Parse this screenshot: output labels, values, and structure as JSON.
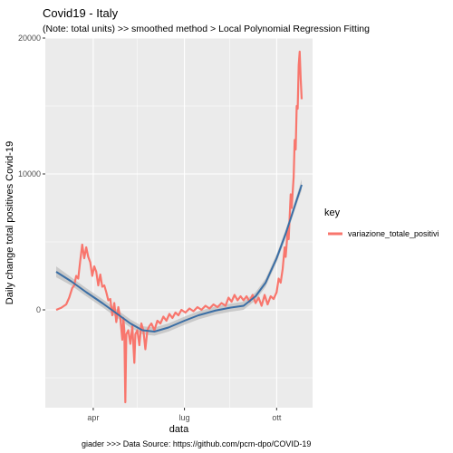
{
  "chart_data": {
    "type": "line",
    "title": "Covid19 - Italy",
    "subtitle": "(Note: total units) >> smoothed method > Local Polynomial Regression Fitting",
    "xlabel": "data",
    "ylabel": "Daily change total positives Covid-19",
    "caption": "giader >>> Data Source: https://github.com/pcm-dpo/COVID-19",
    "xlim": [
      "2020-02-24",
      "2020-10-26"
    ],
    "ylim": [
      -7200,
      20000
    ],
    "grid": true,
    "x_ticks": [
      {
        "date": "2020-04-01",
        "label": "apr"
      },
      {
        "date": "2020-07-01",
        "label": "lug"
      },
      {
        "date": "2020-10-01",
        "label": "ott"
      }
    ],
    "y_ticks": [
      0,
      10000,
      20000
    ],
    "legend": {
      "title": "key",
      "position": "right",
      "entries": [
        "variazione_totale_positivi"
      ]
    },
    "colors": {
      "series": "#f8766d",
      "smooth": "#3a6ea5",
      "band": "#bdbdbd",
      "panel": "#ebebeb",
      "grid": "#ffffff"
    },
    "series": [
      {
        "name": "variazione_totale_positivi",
        "points": [
          [
            "2020-02-24",
            0
          ],
          [
            "2020-02-29",
            150
          ],
          [
            "2020-03-05",
            400
          ],
          [
            "2020-03-08",
            900
          ],
          [
            "2020-03-11",
            1600
          ],
          [
            "2020-03-13",
            1800
          ],
          [
            "2020-03-15",
            2500
          ],
          [
            "2020-03-17",
            2300
          ],
          [
            "2020-03-19",
            3600
          ],
          [
            "2020-03-21",
            4800
          ],
          [
            "2020-03-23",
            3800
          ],
          [
            "2020-03-25",
            4600
          ],
          [
            "2020-03-27",
            3900
          ],
          [
            "2020-03-29",
            3500
          ],
          [
            "2020-03-31",
            2500
          ],
          [
            "2020-04-02",
            3200
          ],
          [
            "2020-04-04",
            2800
          ],
          [
            "2020-04-06",
            1800
          ],
          [
            "2020-04-08",
            2600
          ],
          [
            "2020-04-10",
            1700
          ],
          [
            "2020-04-12",
            1800
          ],
          [
            "2020-04-14",
            1300
          ],
          [
            "2020-04-16",
            700
          ],
          [
            "2020-04-18",
            800
          ],
          [
            "2020-04-20",
            -400
          ],
          [
            "2020-04-22",
            500
          ],
          [
            "2020-04-24",
            -900
          ],
          [
            "2020-04-26",
            200
          ],
          [
            "2020-04-28",
            -600
          ],
          [
            "2020-04-30",
            -2200
          ],
          [
            "2020-05-01",
            -600
          ],
          [
            "2020-05-02",
            -1500
          ],
          [
            "2020-05-03",
            -6800
          ],
          [
            "2020-05-04",
            -1800
          ],
          [
            "2020-05-06",
            -1500
          ],
          [
            "2020-05-08",
            -2500
          ],
          [
            "2020-05-10",
            -1200
          ],
          [
            "2020-05-12",
            -3900
          ],
          [
            "2020-05-13",
            -1800
          ],
          [
            "2020-05-15",
            -1500
          ],
          [
            "2020-05-17",
            -2600
          ],
          [
            "2020-05-19",
            -1000
          ],
          [
            "2020-05-21",
            -1500
          ],
          [
            "2020-05-23",
            -2900
          ],
          [
            "2020-05-25",
            -1500
          ],
          [
            "2020-05-27",
            -1200
          ],
          [
            "2020-05-29",
            -1000
          ],
          [
            "2020-06-01",
            -1500
          ],
          [
            "2020-06-04",
            -800
          ],
          [
            "2020-06-07",
            -1000
          ],
          [
            "2020-06-10",
            -500
          ],
          [
            "2020-06-13",
            -800
          ],
          [
            "2020-06-16",
            -300
          ],
          [
            "2020-06-19",
            -600
          ],
          [
            "2020-06-22",
            -200
          ],
          [
            "2020-06-25",
            -400
          ],
          [
            "2020-06-28",
            0
          ],
          [
            "2020-07-02",
            -200
          ],
          [
            "2020-07-06",
            100
          ],
          [
            "2020-07-10",
            -100
          ],
          [
            "2020-07-14",
            200
          ],
          [
            "2020-07-18",
            0
          ],
          [
            "2020-07-22",
            300
          ],
          [
            "2020-07-26",
            100
          ],
          [
            "2020-07-30",
            400
          ],
          [
            "2020-08-03",
            200
          ],
          [
            "2020-08-07",
            500
          ],
          [
            "2020-08-11",
            300
          ],
          [
            "2020-08-14",
            900
          ],
          [
            "2020-08-17",
            600
          ],
          [
            "2020-08-20",
            1100
          ],
          [
            "2020-08-23",
            700
          ],
          [
            "2020-08-26",
            1000
          ],
          [
            "2020-08-29",
            700
          ],
          [
            "2020-09-01",
            1000
          ],
          [
            "2020-09-04",
            600
          ],
          [
            "2020-09-07",
            1100
          ],
          [
            "2020-09-10",
            500
          ],
          [
            "2020-09-13",
            900
          ],
          [
            "2020-09-16",
            300
          ],
          [
            "2020-09-19",
            1100
          ],
          [
            "2020-09-22",
            400
          ],
          [
            "2020-09-25",
            1000
          ],
          [
            "2020-09-28",
            800
          ],
          [
            "2020-10-01",
            1300
          ],
          [
            "2020-10-03",
            2300
          ],
          [
            "2020-10-05",
            2000
          ],
          [
            "2020-10-07",
            3000
          ],
          [
            "2020-10-09",
            4600
          ],
          [
            "2020-10-10",
            3900
          ],
          [
            "2020-10-12",
            5800
          ],
          [
            "2020-10-13",
            5200
          ],
          [
            "2020-10-15",
            8500
          ],
          [
            "2020-10-16",
            7500
          ],
          [
            "2020-10-18",
            9800
          ],
          [
            "2020-10-19",
            12500
          ],
          [
            "2020-10-20",
            11800
          ],
          [
            "2020-10-21",
            15000
          ],
          [
            "2020-10-22",
            14800
          ],
          [
            "2020-10-23",
            18000
          ],
          [
            "2020-10-24",
            19000
          ],
          [
            "2020-10-25",
            17000
          ],
          [
            "2020-10-26",
            15500
          ]
        ]
      },
      {
        "name": "loess",
        "points": [
          [
            "2020-02-24",
            2800
          ],
          [
            "2020-03-10",
            2100
          ],
          [
            "2020-03-25",
            1300
          ],
          [
            "2020-04-10",
            500
          ],
          [
            "2020-04-25",
            -300
          ],
          [
            "2020-05-08",
            -1000
          ],
          [
            "2020-05-20",
            -1500
          ],
          [
            "2020-06-01",
            -1600
          ],
          [
            "2020-06-15",
            -1300
          ],
          [
            "2020-07-01",
            -800
          ],
          [
            "2020-07-15",
            -400
          ],
          [
            "2020-08-01",
            -50
          ],
          [
            "2020-08-15",
            150
          ],
          [
            "2020-08-29",
            300
          ],
          [
            "2020-09-10",
            1000
          ],
          [
            "2020-09-20",
            2000
          ],
          [
            "2020-10-01",
            3800
          ],
          [
            "2020-10-10",
            5600
          ],
          [
            "2020-10-18",
            7400
          ],
          [
            "2020-10-26",
            9200
          ]
        ],
        "band": [
          400,
          300,
          300,
          300,
          300,
          300,
          300,
          300,
          300,
          300,
          300,
          300,
          300,
          300,
          300,
          300,
          300,
          300,
          300,
          400
        ]
      }
    ]
  }
}
